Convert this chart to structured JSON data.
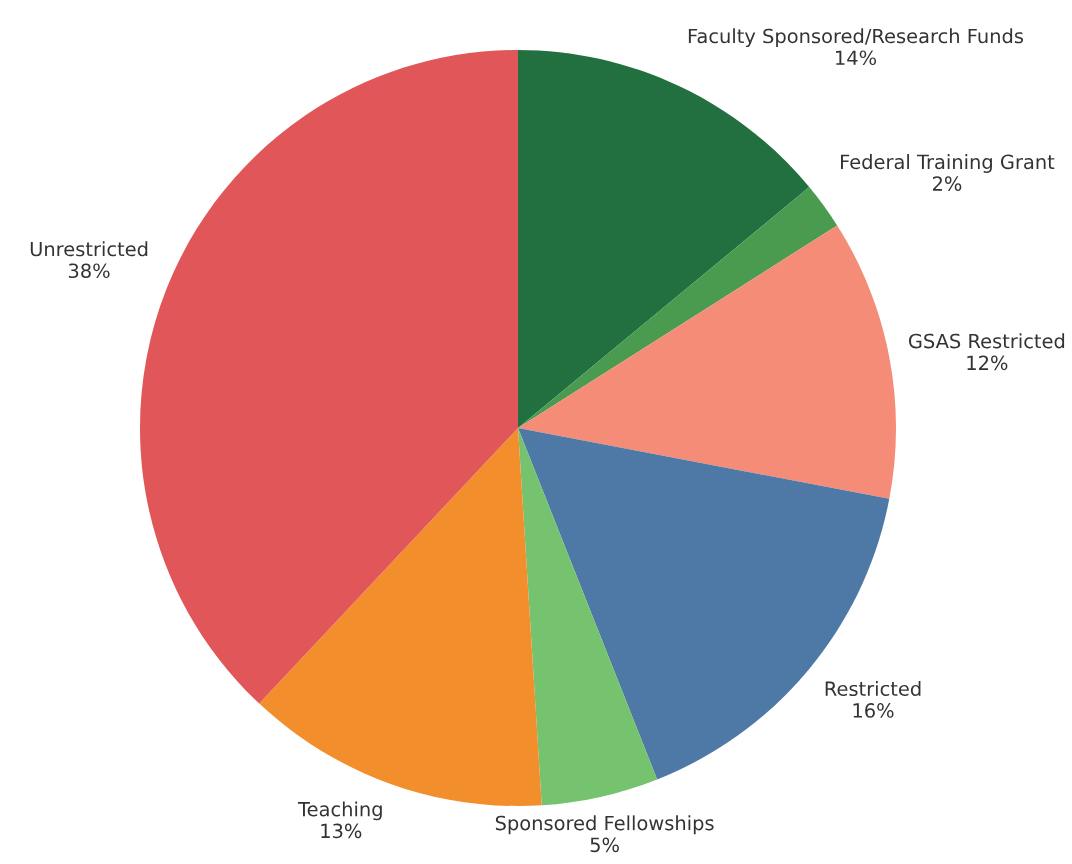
{
  "chart_data": {
    "type": "pie",
    "categories": [
      "Faculty Sponsored/Research Funds",
      "Federal Training Grant",
      "GSAS Restricted",
      "Restricted",
      "Sponsored Fellowships",
      "Teaching",
      "Unrestricted"
    ],
    "values": [
      14,
      2,
      12,
      16,
      5,
      13,
      38
    ],
    "colors": [
      "#22703f",
      "#4a9a50",
      "#f48c78",
      "#4e79a7",
      "#76c36f",
      "#f28e2b",
      "#e15759"
    ],
    "value_labels": [
      "14%",
      "2%",
      "12%",
      "16%",
      "5%",
      "13%",
      "38%"
    ]
  }
}
